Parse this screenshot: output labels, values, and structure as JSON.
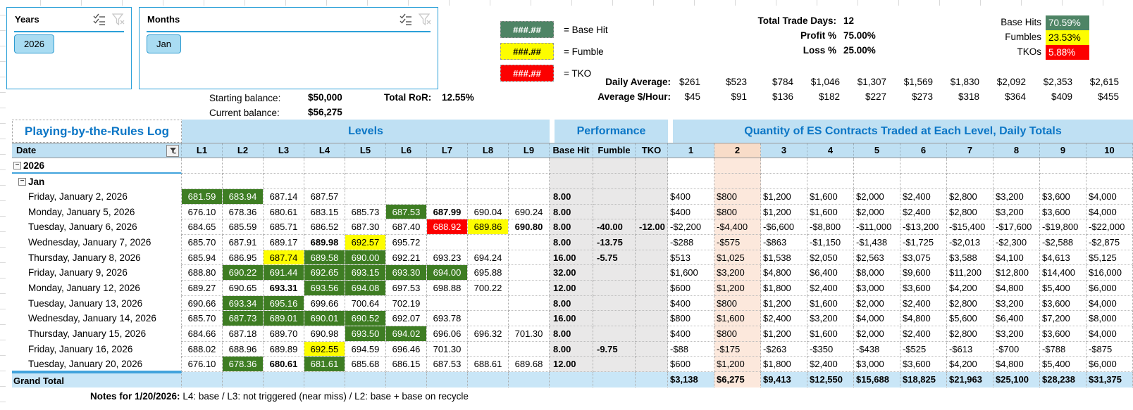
{
  "colors": {
    "accent_blue": "#0b76c6",
    "slicer_blue": "#2ba0d8",
    "button_fill": "#a9dcf2",
    "header_fill": "#bfe0f3",
    "grand_total_fill": "#c9e6f7",
    "base_hit_green": "#3e7d23",
    "legend_green": "#4e8465",
    "fumble_yellow": "#fdfd00",
    "tko_red": "#fc0000",
    "qty2_fill": "#fce8dc",
    "qty2_header_fill": "#f8dcc8",
    "perf_fill": "#e9e8e8"
  },
  "slicers": {
    "years": {
      "title": "Years",
      "selected": "2026"
    },
    "months": {
      "title": "Months",
      "selected": "Jan"
    }
  },
  "legend": {
    "items": [
      {
        "swatch": "###.##",
        "label": "= Base Hit"
      },
      {
        "swatch": "###.##",
        "label": "= Fumble"
      },
      {
        "swatch": "###.##",
        "label": "= TKO"
      }
    ]
  },
  "balances": {
    "starting_label": "Starting balance:",
    "starting_value": "$50,000",
    "current_label": "Current balance:",
    "current_value": "$56,275",
    "ror_label": "Total RoR:",
    "ror_value": "12.55%"
  },
  "stats": {
    "trade_days_label": "Total Trade Days:",
    "trade_days": "12",
    "profit_label": "Profit %",
    "profit": "75.00%",
    "loss_label": "Loss %",
    "loss": "25.00%",
    "base_hits_label": "Base Hits",
    "base_hits": "70.59%",
    "fumbles_label": "Fumbles",
    "fumbles": "23.53%",
    "tkos_label": "TKOs",
    "tkos": "5.88%"
  },
  "averages": {
    "daily_label": "Daily Average:",
    "daily": [
      "$261",
      "$523",
      "$784",
      "$1,046",
      "$1,307",
      "$1,569",
      "$1,830",
      "$2,092",
      "$2,353",
      "$2,615"
    ],
    "hourly_label": "Average $/Hour:",
    "hourly": [
      "$45",
      "$91",
      "$136",
      "$182",
      "$227",
      "$273",
      "$318",
      "$364",
      "$409",
      "$455"
    ]
  },
  "table": {
    "title": "Playing-by-the-Rules Log",
    "sections": {
      "levels": "Levels",
      "performance": "Performance",
      "quantity": "Quantity of ES Contracts Traded at Each Level, Daily Totals"
    },
    "columns": {
      "date": "Date",
      "levels": [
        "L1",
        "L2",
        "L3",
        "L4",
        "L5",
        "L6",
        "L7",
        "L8",
        "L9"
      ],
      "performance": [
        "Base Hit",
        "Fumble",
        "TKO"
      ],
      "quantity": [
        "1",
        "2",
        "3",
        "4",
        "5",
        "6",
        "7",
        "8",
        "9",
        "10"
      ]
    },
    "groups": {
      "year": "2026",
      "month": "Jan"
    },
    "rows": [
      {
        "date": "Friday, January 2, 2026",
        "levels": [
          {
            "v": "681.59",
            "s": "g"
          },
          {
            "v": "683.94",
            "s": "g"
          },
          {
            "v": "687.14"
          },
          {
            "v": "687.57"
          },
          null,
          null,
          null,
          null,
          null
        ],
        "perf": [
          "8.00",
          "",
          ""
        ],
        "qty": [
          "$400",
          "$800",
          "$1,200",
          "$1,600",
          "$2,000",
          "$2,400",
          "$2,800",
          "$3,200",
          "$3,600",
          "$4,000"
        ]
      },
      {
        "date": "Monday, January 5, 2026",
        "levels": [
          {
            "v": "676.10"
          },
          {
            "v": "678.36"
          },
          {
            "v": "680.61"
          },
          {
            "v": "683.15"
          },
          {
            "v": "685.73"
          },
          {
            "v": "687.53",
            "s": "g"
          },
          {
            "v": "687.99",
            "b": true
          },
          {
            "v": "690.04"
          },
          {
            "v": "690.24"
          }
        ],
        "perf": [
          "8.00",
          "",
          ""
        ],
        "qty": [
          "$400",
          "$800",
          "$1,200",
          "$1,600",
          "$2,000",
          "$2,400",
          "$2,800",
          "$3,200",
          "$3,600",
          "$4,000"
        ]
      },
      {
        "date": "Tuesday, January 6, 2026",
        "levels": [
          {
            "v": "684.65"
          },
          {
            "v": "685.59"
          },
          {
            "v": "685.71"
          },
          {
            "v": "686.52"
          },
          {
            "v": "687.30"
          },
          {
            "v": "687.40"
          },
          {
            "v": "688.92",
            "s": "r"
          },
          {
            "v": "689.86",
            "s": "y"
          },
          {
            "v": "690.80",
            "b": true
          }
        ],
        "perf": [
          "8.00",
          "-40.00",
          "-12.00"
        ],
        "qty": [
          "-$2,200",
          "-$4,400",
          "-$6,600",
          "-$8,800",
          "-$11,000",
          "-$13,200",
          "-$15,400",
          "-$17,600",
          "-$19,800",
          "-$22,000"
        ]
      },
      {
        "date": "Wednesday, January 7, 2026",
        "levels": [
          {
            "v": "685.70"
          },
          {
            "v": "687.91"
          },
          {
            "v": "689.17"
          },
          {
            "v": "689.98",
            "b": true
          },
          {
            "v": "692.57",
            "s": "y"
          },
          {
            "v": "695.72"
          },
          null,
          null,
          null
        ],
        "perf": [
          "8.00",
          "-13.75",
          ""
        ],
        "qty": [
          "-$288",
          "-$575",
          "-$863",
          "-$1,150",
          "-$1,438",
          "-$1,725",
          "-$2,013",
          "-$2,300",
          "-$2,588",
          "-$2,875"
        ]
      },
      {
        "date": "Thursday, January 8, 2026",
        "levels": [
          {
            "v": "685.94"
          },
          {
            "v": "686.95"
          },
          {
            "v": "687.74",
            "s": "y"
          },
          {
            "v": "689.58",
            "s": "g"
          },
          {
            "v": "690.00",
            "s": "g"
          },
          {
            "v": "692.21"
          },
          {
            "v": "693.23"
          },
          {
            "v": "694.24"
          },
          null
        ],
        "perf": [
          "16.00",
          "-5.75",
          ""
        ],
        "qty": [
          "$513",
          "$1,025",
          "$1,538",
          "$2,050",
          "$2,563",
          "$3,075",
          "$3,588",
          "$4,100",
          "$4,613",
          "$5,125"
        ]
      },
      {
        "date": "Friday, January 9, 2026",
        "levels": [
          {
            "v": "688.80"
          },
          {
            "v": "690.22",
            "s": "g"
          },
          {
            "v": "691.44",
            "s": "g"
          },
          {
            "v": "692.65",
            "s": "g"
          },
          {
            "v": "693.15",
            "s": "g"
          },
          {
            "v": "693.30",
            "s": "g"
          },
          {
            "v": "694.00",
            "s": "g"
          },
          {
            "v": "695.88"
          },
          null
        ],
        "perf": [
          "32.00",
          "",
          ""
        ],
        "qty": [
          "$1,600",
          "$3,200",
          "$4,800",
          "$6,400",
          "$8,000",
          "$9,600",
          "$11,200",
          "$12,800",
          "$14,400",
          "$16,000"
        ]
      },
      {
        "date": "Monday, January 12, 2026",
        "levels": [
          {
            "v": "689.27"
          },
          {
            "v": "690.65"
          },
          {
            "v": "693.31",
            "b": true
          },
          {
            "v": "693.56",
            "s": "g"
          },
          {
            "v": "694.08",
            "s": "g"
          },
          {
            "v": "697.53"
          },
          {
            "v": "698.88"
          },
          {
            "v": "700.22"
          },
          null
        ],
        "perf": [
          "12.00",
          "",
          ""
        ],
        "qty": [
          "$600",
          "$1,200",
          "$1,800",
          "$2,400",
          "$3,000",
          "$3,600",
          "$4,200",
          "$4,800",
          "$5,400",
          "$6,000"
        ]
      },
      {
        "date": "Tuesday, January 13, 2026",
        "levels": [
          {
            "v": "690.66"
          },
          {
            "v": "693.34",
            "s": "g"
          },
          {
            "v": "695.16",
            "s": "g"
          },
          {
            "v": "699.66"
          },
          {
            "v": "700.64"
          },
          {
            "v": "702.19"
          },
          null,
          null,
          null
        ],
        "perf": [
          "8.00",
          "",
          ""
        ],
        "qty": [
          "$400",
          "$800",
          "$1,200",
          "$1,600",
          "$2,000",
          "$2,400",
          "$2,800",
          "$3,200",
          "$3,600",
          "$4,000"
        ]
      },
      {
        "date": "Wednesday, January 14, 2026",
        "levels": [
          {
            "v": "685.70"
          },
          {
            "v": "687.73",
            "s": "g"
          },
          {
            "v": "689.01",
            "s": "g"
          },
          {
            "v": "690.01",
            "s": "g"
          },
          {
            "v": "690.52",
            "s": "g"
          },
          {
            "v": "692.07"
          },
          {
            "v": "693.78"
          },
          null,
          null
        ],
        "perf": [
          "16.00",
          "",
          ""
        ],
        "qty": [
          "$800",
          "$1,600",
          "$2,400",
          "$3,200",
          "$4,000",
          "$4,800",
          "$5,600",
          "$6,400",
          "$7,200",
          "$8,000"
        ]
      },
      {
        "date": "Thursday, January 15, 2026",
        "levels": [
          {
            "v": "684.66"
          },
          {
            "v": "687.18"
          },
          {
            "v": "689.70"
          },
          {
            "v": "690.98"
          },
          {
            "v": "693.50",
            "s": "g"
          },
          {
            "v": "694.02",
            "s": "g"
          },
          {
            "v": "696.06"
          },
          {
            "v": "696.32"
          },
          {
            "v": "701.30"
          }
        ],
        "perf": [
          "8.00",
          "",
          ""
        ],
        "qty": [
          "$400",
          "$800",
          "$1,200",
          "$1,600",
          "$2,000",
          "$2,400",
          "$2,800",
          "$3,200",
          "$3,600",
          "$4,000"
        ]
      },
      {
        "date": "Friday, January 16, 2026",
        "levels": [
          {
            "v": "688.02"
          },
          {
            "v": "688.96"
          },
          {
            "v": "689.89"
          },
          {
            "v": "692.55",
            "s": "y"
          },
          {
            "v": "694.59"
          },
          {
            "v": "696.46"
          },
          {
            "v": "701.30"
          },
          null,
          null
        ],
        "perf": [
          "8.00",
          "-9.75",
          ""
        ],
        "qty": [
          "-$88",
          "-$175",
          "-$263",
          "-$350",
          "-$438",
          "-$525",
          "-$613",
          "-$700",
          "-$788",
          "-$875"
        ]
      },
      {
        "date": "Tuesday, January 20, 2026",
        "levels": [
          {
            "v": "676.10"
          },
          {
            "v": "678.36",
            "s": "g"
          },
          {
            "v": "680.61",
            "b": true
          },
          {
            "v": "681.61",
            "s": "g"
          },
          {
            "v": "685.68"
          },
          {
            "v": "686.15"
          },
          {
            "v": "687.53"
          },
          {
            "v": "688.61"
          },
          {
            "v": "689.68"
          }
        ],
        "perf": [
          "12.00",
          "",
          ""
        ],
        "qty": [
          "$600",
          "$1,200",
          "$1,800",
          "$2,400",
          "$3,000",
          "$3,600",
          "$4,200",
          "$4,800",
          "$5,400",
          "$6,000"
        ]
      }
    ],
    "grand_total": {
      "label": "Grand Total",
      "qty": [
        "$3,138",
        "$6,275",
        "$9,413",
        "$12,550",
        "$15,688",
        "$18,825",
        "$21,963",
        "$25,100",
        "$28,238",
        "$31,375"
      ]
    }
  },
  "notes": {
    "label": "Notes for 1/20/2026:",
    "text": " L4: base / L3: not triggered (near miss) / L2: base + base on recycle"
  }
}
